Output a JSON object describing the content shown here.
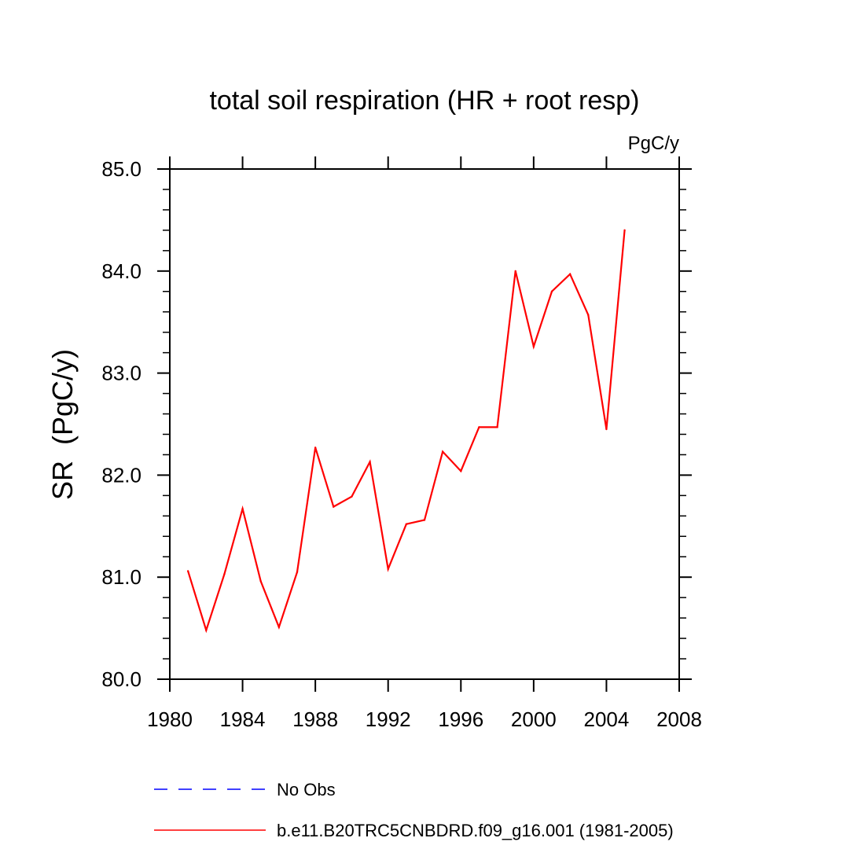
{
  "chart_data": {
    "type": "line",
    "title": "total soil respiration (HR + root resp)",
    "units_label": "PgC/y",
    "ylabel": "SR  (PgC/y)",
    "xlabel": "",
    "xlim": [
      1980,
      2008
    ],
    "ylim": [
      80.0,
      85.0
    ],
    "xticks": [
      1980,
      1984,
      1988,
      1992,
      1996,
      2000,
      2004,
      2008
    ],
    "xtick_labels": [
      "1980",
      "1984",
      "1988",
      "1992",
      "1996",
      "2000",
      "2004",
      "2008"
    ],
    "yticks": [
      80.0,
      81.0,
      82.0,
      83.0,
      84.0,
      85.0
    ],
    "ytick_labels": [
      "80.0",
      "81.0",
      "82.0",
      "83.0",
      "84.0",
      "85.0"
    ],
    "grid": false,
    "legend_position": "bottom",
    "series": [
      {
        "name": "b.e11.B20TRC5CNBDRD.f09_g16.001 (1981-2005)",
        "color": "#ff0000",
        "dash": "solid",
        "x": [
          1981,
          1982,
          1983,
          1984,
          1985,
          1986,
          1987,
          1988,
          1989,
          1990,
          1991,
          1992,
          1993,
          1994,
          1995,
          1996,
          1997,
          1998,
          1999,
          2000,
          2001,
          2002,
          2003,
          2004,
          2005
        ],
        "values": [
          81.06,
          80.48,
          81.03,
          81.67,
          80.96,
          80.51,
          81.05,
          82.27,
          81.69,
          81.79,
          82.13,
          81.08,
          81.52,
          81.56,
          82.23,
          82.04,
          82.47,
          82.47,
          84.0,
          83.26,
          83.8,
          83.97,
          83.57,
          82.45,
          84.4
        ]
      }
    ],
    "legend": [
      {
        "label": "No Obs",
        "color": "#0000ff",
        "dash": "dashed"
      },
      {
        "label": "b.e11.B20TRC5CNBDRD.f09_g16.001 (1981-2005)",
        "color": "#ff0000",
        "dash": "solid"
      }
    ]
  }
}
